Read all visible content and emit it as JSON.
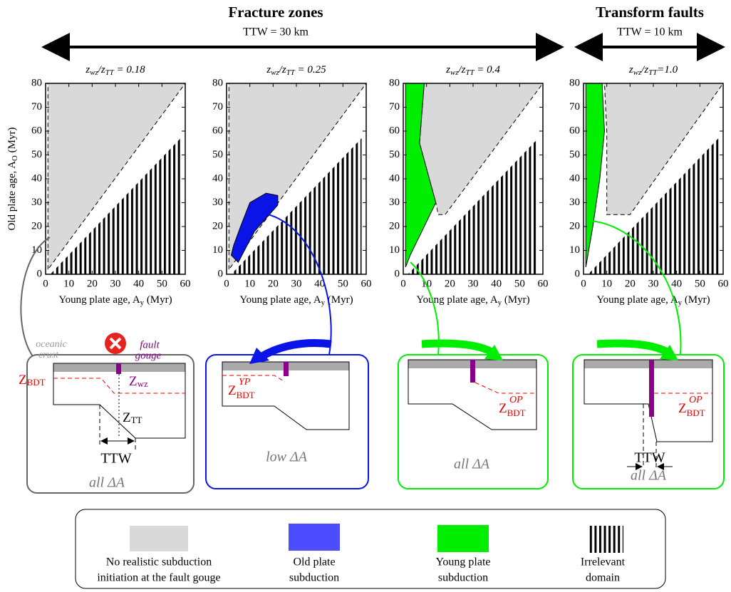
{
  "header": {
    "fracture_zones": "Fracture zones",
    "fz_ttw": "TTW = 30 km",
    "transform_faults": "Transform faults",
    "tf_ttw": "TTW = 10 km"
  },
  "chart_data": [
    {
      "type": "region",
      "title": [
        {
          "text": "z"
        },
        {
          "text": "wz",
          "sub": true
        },
        {
          "text": "/z"
        },
        {
          "text": "TT",
          "sub": true
        },
        {
          "text": " = 0.18"
        }
      ],
      "xlabel": [
        {
          "text": "Young plate age, A"
        },
        {
          "text": "y",
          "sub": true
        },
        {
          "text": " (Myr)"
        }
      ],
      "ylabel": [
        {
          "text": "Old plate age, A"
        },
        {
          "text": "O",
          "sub": true
        },
        {
          "text": " (Myr)"
        }
      ],
      "xlim": [
        0,
        60
      ],
      "ylim": [
        0,
        80
      ],
      "xticks": [
        0,
        10,
        20,
        30,
        40,
        50,
        60
      ],
      "yticks": [
        0,
        10,
        20,
        30,
        40,
        50,
        60,
        70,
        80
      ],
      "series": [
        {
          "color": "#d9d9d9",
          "border": "dashed",
          "x": [
            1,
            1,
            60
          ],
          "y": [
            2,
            80,
            80
          ]
        },
        {
          "color": "#000000",
          "pattern": "stripes",
          "x": [
            2,
            58,
            58
          ],
          "y": [
            0,
            0,
            57
          ]
        }
      ]
    },
    {
      "type": "region",
      "title": [
        {
          "text": "z"
        },
        {
          "text": "wz",
          "sub": true
        },
        {
          "text": "/z"
        },
        {
          "text": "TT",
          "sub": true
        },
        {
          "text": " = 0.25"
        }
      ],
      "xlabel": [
        {
          "text": "Young plate age, A"
        },
        {
          "text": "y",
          "sub": true
        },
        {
          "text": " (Myr)"
        }
      ],
      "xlim": [
        0,
        60
      ],
      "ylim": [
        0,
        80
      ],
      "xticks": [
        0,
        10,
        20,
        30,
        40,
        50,
        60
      ],
      "yticks": [
        0,
        10,
        20,
        30,
        40,
        50,
        60,
        70,
        80
      ],
      "series": [
        {
          "color": "#d9d9d9",
          "border": "dashed",
          "x": [
            1,
            1,
            60
          ],
          "y": [
            2,
            80,
            80
          ]
        },
        {
          "color": "#000000",
          "pattern": "stripes",
          "x": [
            2,
            58,
            58
          ],
          "y": [
            0,
            0,
            57
          ]
        },
        {
          "color": "#0a14e6",
          "border": "solid",
          "x": [
            2,
            5,
            12,
            22,
            22,
            17,
            10,
            6,
            3
          ],
          "y": [
            8,
            5,
            18,
            29,
            33,
            34,
            30,
            20,
            12
          ]
        }
      ]
    },
    {
      "type": "region",
      "title": [
        {
          "text": "z"
        },
        {
          "text": "wz",
          "sub": true
        },
        {
          "text": "/z"
        },
        {
          "text": "TT",
          "sub": true
        },
        {
          "text": " = 0.4"
        }
      ],
      "xlabel": [
        {
          "text": "Young plate age, A"
        },
        {
          "text": "y",
          "sub": true
        },
        {
          "text": " (Myr)"
        }
      ],
      "xlim": [
        0,
        60
      ],
      "ylim": [
        0,
        80
      ],
      "xticks": [
        0,
        10,
        20,
        30,
        40,
        50,
        60
      ],
      "yticks": [
        0,
        10,
        20,
        30,
        40,
        50,
        60,
        70,
        80
      ],
      "series": [
        {
          "color": "#d9d9d9",
          "border": "dashed",
          "x": [
            9,
            60,
            18,
            15,
            14,
            7
          ],
          "y": [
            80,
            80,
            25,
            25,
            30,
            55
          ]
        },
        {
          "color": "#000000",
          "pattern": "stripes",
          "x": [
            2,
            58,
            58
          ],
          "y": [
            0,
            0,
            57
          ]
        },
        {
          "color": "#00ee00",
          "border": "solid",
          "x": [
            1,
            9,
            7,
            14,
            3,
            1
          ],
          "y": [
            80,
            80,
            55,
            30,
            8,
            3
          ]
        }
      ]
    },
    {
      "type": "region",
      "title": [
        {
          "text": "z"
        },
        {
          "text": "wz",
          "sub": true
        },
        {
          "text": "/z"
        },
        {
          "text": "TT",
          "sub": true
        },
        {
          "text": "=1.0"
        }
      ],
      "xlabel": [
        {
          "text": "Young plate age, A"
        },
        {
          "text": "y",
          "sub": true
        },
        {
          "text": " (Myr)"
        }
      ],
      "xlim": [
        0,
        60
      ],
      "ylim": [
        0,
        80
      ],
      "xticks": [
        0,
        10,
        20,
        30,
        40,
        50,
        60
      ],
      "yticks": [
        0,
        10,
        20,
        30,
        40,
        50,
        60,
        70,
        80
      ],
      "series": [
        {
          "color": "#d9d9d9",
          "border": "dashed",
          "x": [
            9,
            60,
            20,
            10,
            10
          ],
          "y": [
            80,
            80,
            25,
            25,
            60
          ]
        },
        {
          "color": "#000000",
          "pattern": "stripes",
          "x": [
            2,
            58,
            58
          ],
          "y": [
            0,
            0,
            57
          ]
        },
        {
          "color": "#00ee00",
          "border": "solid",
          "x": [
            1,
            8,
            9,
            7,
            4,
            1
          ],
          "y": [
            80,
            80,
            60,
            40,
            20,
            3
          ]
        }
      ]
    }
  ],
  "diagrams": [
    {
      "crust": [
        "oceanic",
        "crust"
      ],
      "gouge": [
        "fault",
        "gouge"
      ],
      "z_bdt": {
        "main": "Z",
        "sub": "BDT"
      },
      "z_wz": {
        "main": "Z",
        "sub": "wz"
      },
      "z_tt": {
        "main": "Z",
        "sub": "TT"
      },
      "ttw": "TTW",
      "delta": "all  ΔA"
    },
    {
      "z_bdt": {
        "main": "Z",
        "sub": "BDT",
        "sup": "YP"
      },
      "delta": "low  ΔA"
    },
    {
      "z_bdt": {
        "main": "Z",
        "sub": "BDT",
        "sup": "OP"
      },
      "delta": "all  ΔA"
    },
    {
      "z_bdt": {
        "main": "Z",
        "sub": "BDT",
        "sup": "OP"
      },
      "ttw": "TTW",
      "delta": "all  ΔA"
    }
  ],
  "legend": [
    {
      "lines": [
        "No realistic subduction",
        "initiation at the fault gouge"
      ],
      "color": "#d9d9d9"
    },
    {
      "lines": [
        "Old plate",
        "subduction"
      ],
      "color": "#4d4dff"
    },
    {
      "lines": [
        "Young plate",
        "subduction"
      ],
      "color": "#00ee00"
    },
    {
      "lines": [
        "Irrelevant",
        "domain"
      ],
      "color": "#000000",
      "pattern": "stripes"
    }
  ]
}
